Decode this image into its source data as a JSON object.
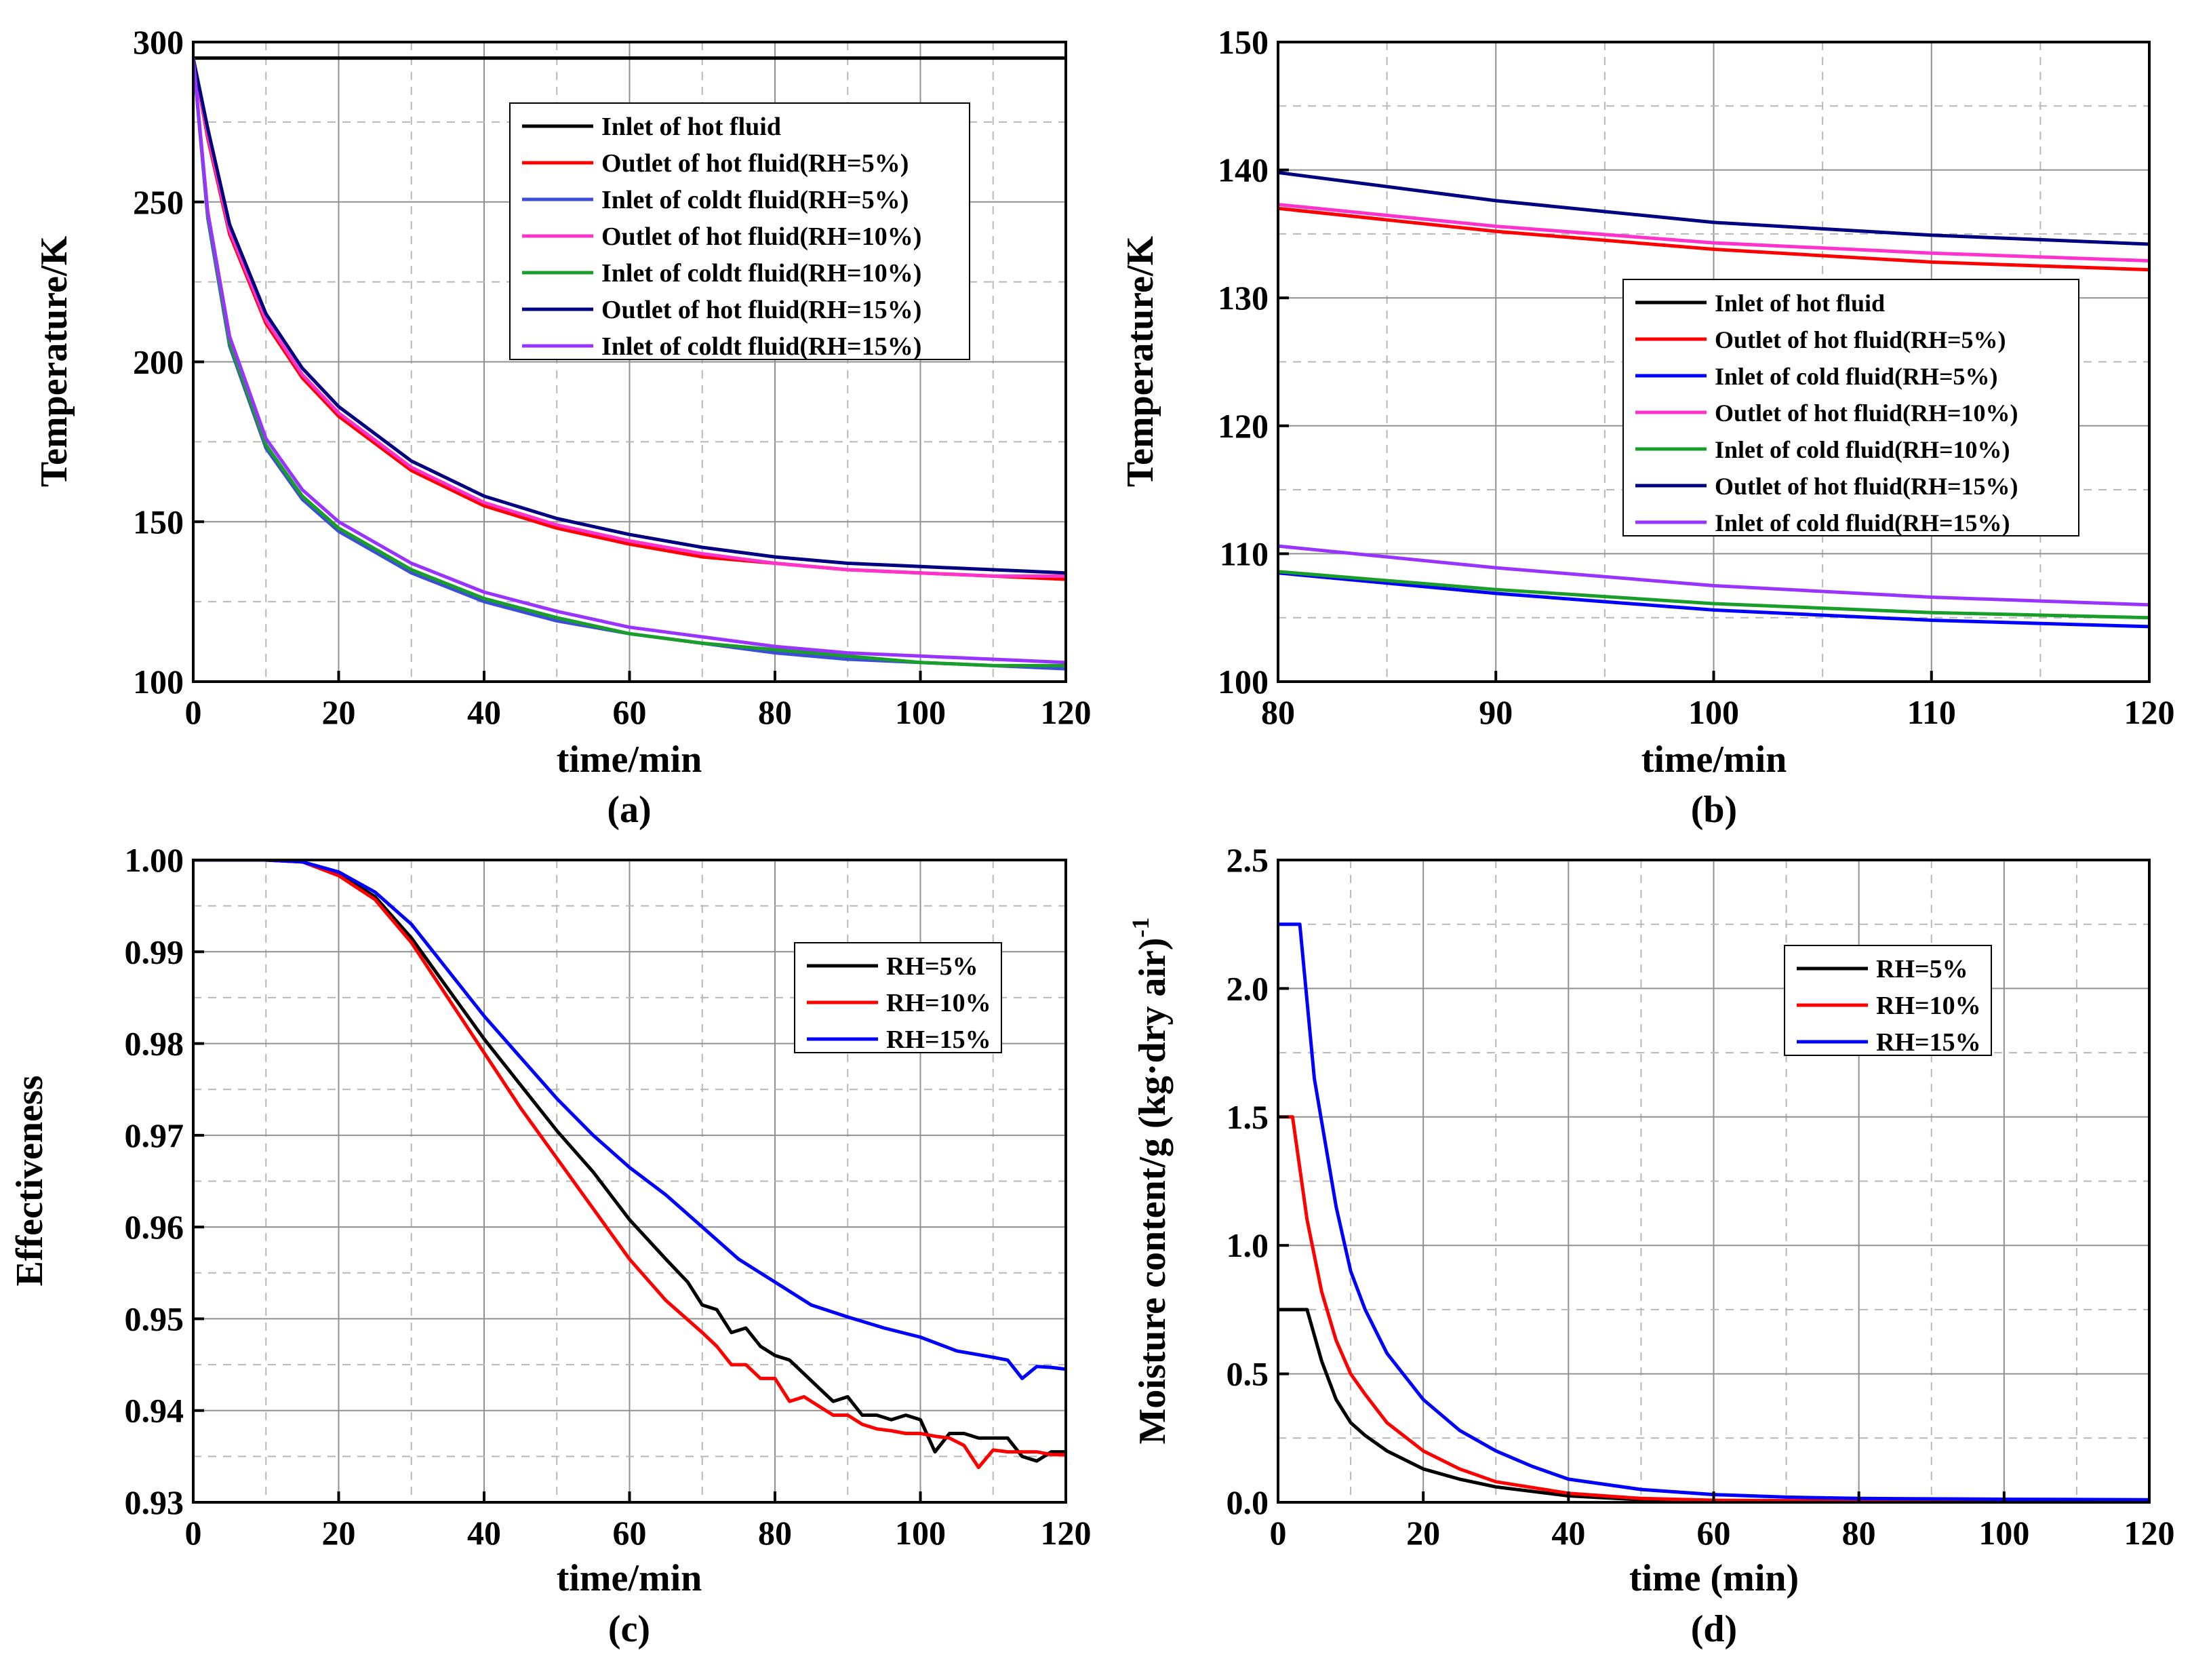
{
  "chart_data": [
    {
      "id": "a",
      "type": "line",
      "panel_label": "(a)",
      "xlabel": "time/min",
      "ylabel": "Temperature/K",
      "xlim": [
        0,
        120
      ],
      "ylim": [
        100,
        300
      ],
      "xticks": [
        0,
        20,
        40,
        60,
        80,
        100,
        120
      ],
      "yticks": [
        100,
        150,
        200,
        250,
        300
      ],
      "grid": true,
      "legend_position": "top-right",
      "series": [
        {
          "name": "Inlet of hot fluid",
          "color": "#000000",
          "x": [
            0,
            120
          ],
          "y": [
            295,
            295
          ]
        },
        {
          "name": "Outlet of hot fluid(RH=5%)",
          "color": "#ff0000",
          "x": [
            0,
            2,
            5,
            10,
            15,
            20,
            30,
            40,
            50,
            60,
            70,
            80,
            90,
            100,
            110,
            120
          ],
          "y": [
            295,
            270,
            240,
            212,
            195,
            183,
            166,
            155,
            148,
            143,
            139,
            137,
            135,
            134,
            133,
            132
          ]
        },
        {
          "name": "Inlet of coldt fluid(RH=5%)",
          "color": "#3b4fd8",
          "x": [
            0,
            2,
            5,
            10,
            15,
            20,
            30,
            40,
            50,
            60,
            70,
            80,
            90,
            100,
            110,
            120
          ],
          "y": [
            295,
            245,
            205,
            173,
            157,
            147,
            134,
            125,
            119,
            115,
            112,
            109,
            107,
            106,
            105,
            104
          ]
        },
        {
          "name": "Outlet of hot fluid(RH=10%)",
          "color": "#ff33cc",
          "x": [
            0,
            2,
            5,
            10,
            15,
            20,
            30,
            40,
            50,
            60,
            70,
            80,
            90,
            100,
            110,
            120
          ],
          "y": [
            295,
            271,
            241,
            213,
            196,
            184,
            167,
            156,
            149,
            144,
            140,
            137,
            135,
            134,
            133,
            133
          ]
        },
        {
          "name": "Inlet of coldt fluid(RH=10%)",
          "color": "#1a9e2a",
          "x": [
            0,
            2,
            5,
            10,
            15,
            20,
            30,
            40,
            50,
            60,
            70,
            80,
            90,
            100,
            110,
            120
          ],
          "y": [
            295,
            246,
            206,
            174,
            158,
            148,
            135,
            126,
            120,
            115,
            112,
            110,
            108,
            106,
            105,
            105
          ]
        },
        {
          "name": "Outlet of hot fluid(RH=15%)",
          "color": "#000080",
          "x": [
            0,
            2,
            5,
            10,
            15,
            20,
            30,
            40,
            50,
            60,
            70,
            80,
            90,
            100,
            110,
            120
          ],
          "y": [
            295,
            273,
            243,
            215,
            198,
            186,
            169,
            158,
            151,
            146,
            142,
            139,
            137,
            136,
            135,
            134
          ]
        },
        {
          "name": "Inlet of coldt fluid(RH=15%)",
          "color": "#9933ff",
          "x": [
            0,
            2,
            5,
            10,
            15,
            20,
            30,
            40,
            50,
            60,
            70,
            80,
            90,
            100,
            110,
            120
          ],
          "y": [
            295,
            247,
            208,
            176,
            160,
            150,
            137,
            128,
            122,
            117,
            114,
            111,
            109,
            108,
            107,
            106
          ]
        }
      ]
    },
    {
      "id": "b",
      "type": "line",
      "panel_label": "(b)",
      "xlabel": "time/min",
      "ylabel": "Temperature/K",
      "xlim": [
        80,
        120
      ],
      "ylim": [
        100,
        150
      ],
      "xticks": [
        80,
        90,
        100,
        110,
        120
      ],
      "yticks": [
        100,
        110,
        120,
        130,
        140,
        150
      ],
      "grid": true,
      "legend_position": "center",
      "series": [
        {
          "name": "Inlet of hot fluid",
          "color": "#000000",
          "x": [],
          "y": []
        },
        {
          "name": "Outlet of hot fluid(RH=5%)",
          "color": "#ff0000",
          "x": [
            80,
            90,
            100,
            110,
            120
          ],
          "y": [
            137,
            135.2,
            133.8,
            132.8,
            132.2
          ]
        },
        {
          "name": "Inlet of cold fluid(RH=5%)",
          "color": "#0000ff",
          "x": [
            80,
            90,
            100,
            110,
            120
          ],
          "y": [
            108.5,
            106.9,
            105.6,
            104.8,
            104.3
          ]
        },
        {
          "name": "Outlet of hot fluid(RH=10%)",
          "color": "#ff33cc",
          "x": [
            80,
            90,
            100,
            110,
            120
          ],
          "y": [
            137.3,
            135.6,
            134.3,
            133.5,
            132.9
          ]
        },
        {
          "name": "Inlet of cold fluid(RH=10%)",
          "color": "#1a9e2a",
          "x": [
            80,
            90,
            100,
            110,
            120
          ],
          "y": [
            108.6,
            107.2,
            106.1,
            105.4,
            105
          ]
        },
        {
          "name": "Outlet of hot fluid(RH=15%)",
          "color": "#000080",
          "x": [
            80,
            90,
            100,
            110,
            120
          ],
          "y": [
            139.8,
            137.6,
            135.9,
            134.9,
            134.2
          ]
        },
        {
          "name": "Inlet of cold fluid(RH=15%)",
          "color": "#9933ff",
          "x": [
            80,
            90,
            100,
            110,
            120
          ],
          "y": [
            110.6,
            108.9,
            107.5,
            106.6,
            106
          ]
        }
      ]
    },
    {
      "id": "c",
      "type": "line",
      "panel_label": "(c)",
      "xlabel": "time/min",
      "ylabel": "Effectiveness",
      "xlim": [
        0,
        120
      ],
      "ylim": [
        0.93,
        1.0
      ],
      "xticks": [
        0,
        20,
        40,
        60,
        80,
        100,
        120
      ],
      "yticks": [
        "0.93",
        "0.94",
        "0.95",
        "0.96",
        "0.97",
        "0.98",
        "0.99",
        "1.00"
      ],
      "grid": true,
      "legend_position": "top-right",
      "series": [
        {
          "name": "RH=5%",
          "color": "#000000",
          "x": [
            0,
            10,
            15,
            20,
            25,
            30,
            35,
            40,
            45,
            50,
            55,
            60,
            65,
            68,
            70,
            72,
            74,
            76,
            78,
            80,
            82,
            84,
            86,
            88,
            90,
            92,
            94,
            96,
            98,
            100,
            102,
            104,
            106,
            108,
            110,
            112,
            114,
            116,
            118,
            120
          ],
          "y": [
            1.0,
            1.0,
            0.9998,
            0.9985,
            0.996,
            0.9915,
            0.986,
            0.9805,
            0.9755,
            0.9705,
            0.966,
            0.9608,
            0.9565,
            0.954,
            0.9515,
            0.951,
            0.9485,
            0.949,
            0.947,
            0.946,
            0.9455,
            0.944,
            0.9425,
            0.941,
            0.9415,
            0.9395,
            0.9395,
            0.939,
            0.9395,
            0.939,
            0.9355,
            0.9375,
            0.9375,
            0.937,
            0.937,
            0.937,
            0.935,
            0.9345,
            0.9355,
            0.9355
          ]
        },
        {
          "name": "RH=10%",
          "color": "#ff0000",
          "x": [
            0,
            10,
            15,
            20,
            25,
            30,
            35,
            40,
            45,
            50,
            55,
            60,
            65,
            70,
            72,
            74,
            76,
            78,
            80,
            82,
            84,
            86,
            88,
            90,
            92,
            94,
            96,
            98,
            100,
            102,
            104,
            106,
            108,
            110,
            112,
            114,
            116,
            118,
            120
          ],
          "y": [
            1.0,
            1.0,
            0.9998,
            0.9983,
            0.9957,
            0.991,
            0.985,
            0.979,
            0.973,
            0.9675,
            0.962,
            0.9565,
            0.952,
            0.9485,
            0.947,
            0.945,
            0.945,
            0.9435,
            0.9435,
            0.941,
            0.9415,
            0.9405,
            0.9395,
            0.9395,
            0.9385,
            0.938,
            0.9378,
            0.9375,
            0.9375,
            0.9372,
            0.937,
            0.9362,
            0.9338,
            0.9357,
            0.9355,
            0.9355,
            0.9355,
            0.9352,
            0.9352
          ]
        },
        {
          "name": "RH=15%",
          "color": "#0000ff",
          "x": [
            0,
            10,
            15,
            20,
            25,
            30,
            35,
            40,
            45,
            50,
            55,
            60,
            65,
            70,
            75,
            80,
            85,
            90,
            95,
            100,
            105,
            110,
            112,
            114,
            116,
            118,
            120
          ],
          "y": [
            1.0,
            1.0,
            0.9998,
            0.9987,
            0.9965,
            0.993,
            0.988,
            0.983,
            0.9785,
            0.974,
            0.97,
            0.9665,
            0.9635,
            0.96,
            0.9565,
            0.954,
            0.9515,
            0.9502,
            0.949,
            0.948,
            0.9465,
            0.9458,
            0.9455,
            0.9435,
            0.9448,
            0.9447,
            0.9445
          ]
        }
      ]
    },
    {
      "id": "d",
      "type": "line",
      "panel_label": "(d)",
      "xlabel": "time (min)",
      "ylabel_main": "Moisture content/g (kg·dry air)",
      "ylabel_sup": "-1",
      "xlim": [
        0,
        120
      ],
      "ylim": [
        0,
        2.5
      ],
      "xticks": [
        0,
        20,
        40,
        60,
        80,
        100,
        120
      ],
      "yticks": [
        "0.0",
        "0.5",
        "1.0",
        "1.5",
        "2.0",
        "2.5"
      ],
      "grid": true,
      "legend_position": "top-right",
      "series": [
        {
          "name": "RH=5%",
          "color": "#000000",
          "x": [
            0,
            2,
            4,
            6,
            8,
            10,
            12,
            15,
            20,
            25,
            30,
            40,
            50,
            60,
            80,
            100,
            120
          ],
          "y": [
            0.75,
            0.75,
            0.75,
            0.55,
            0.4,
            0.31,
            0.26,
            0.2,
            0.13,
            0.09,
            0.06,
            0.025,
            0.01,
            0.005,
            0.003,
            0.003,
            0.003
          ]
        },
        {
          "name": "RH=10%",
          "color": "#ff0000",
          "x": [
            0,
            1,
            2,
            4,
            6,
            8,
            10,
            12,
            15,
            20,
            25,
            30,
            40,
            50,
            60,
            80,
            100,
            120
          ],
          "y": [
            1.5,
            1.5,
            1.5,
            1.1,
            0.82,
            0.63,
            0.5,
            0.42,
            0.31,
            0.2,
            0.13,
            0.08,
            0.035,
            0.015,
            0.008,
            0.005,
            0.005,
            0.005
          ]
        },
        {
          "name": "RH=15%",
          "color": "#0000ff",
          "x": [
            0,
            1,
            2,
            3,
            5,
            8,
            10,
            12,
            15,
            20,
            25,
            30,
            35,
            40,
            50,
            60,
            70,
            80,
            100,
            120
          ],
          "y": [
            2.25,
            2.25,
            2.25,
            2.25,
            1.65,
            1.15,
            0.9,
            0.75,
            0.58,
            0.4,
            0.28,
            0.2,
            0.14,
            0.09,
            0.05,
            0.03,
            0.02,
            0.015,
            0.012,
            0.01
          ]
        }
      ]
    }
  ]
}
